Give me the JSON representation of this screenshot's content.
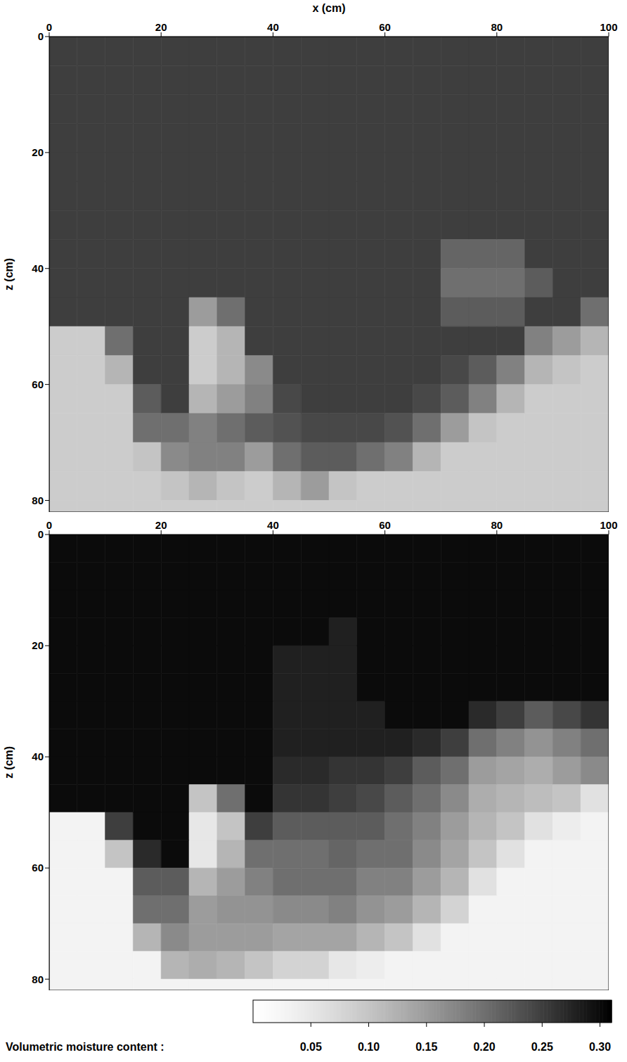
{
  "chart_data": [
    {
      "type": "heatmap",
      "xlabel": "x (cm)",
      "ylabel": "z (cm)",
      "xlim": [
        0,
        100
      ],
      "ylim": [
        0,
        82
      ],
      "xticks": [
        0,
        20,
        40,
        60,
        80,
        100
      ],
      "yticks": [
        0,
        20,
        40,
        60,
        80
      ],
      "x_edges": [
        0,
        5,
        10,
        15,
        20,
        25,
        30,
        35,
        40,
        45,
        50,
        55,
        60,
        65,
        70,
        75,
        80,
        85,
        90,
        95,
        100
      ],
      "y_edges": [
        0,
        5,
        10,
        15,
        20,
        25,
        30,
        35,
        40,
        45,
        50,
        55,
        60,
        65,
        70,
        75,
        80,
        82
      ],
      "cells": [
        [
          0.25,
          0.25,
          0.25,
          0.25,
          0.25,
          0.25,
          0.25,
          0.25,
          0.25,
          0.25,
          0.25,
          0.25,
          0.25,
          0.25,
          0.25,
          0.25,
          0.25,
          0.25,
          0.25,
          0.25
        ],
        [
          0.25,
          0.25,
          0.25,
          0.25,
          0.25,
          0.25,
          0.25,
          0.25,
          0.25,
          0.25,
          0.25,
          0.25,
          0.25,
          0.25,
          0.25,
          0.25,
          0.25,
          0.25,
          0.25,
          0.25
        ],
        [
          0.25,
          0.25,
          0.25,
          0.25,
          0.25,
          0.25,
          0.25,
          0.25,
          0.25,
          0.25,
          0.25,
          0.25,
          0.25,
          0.25,
          0.25,
          0.25,
          0.25,
          0.25,
          0.25,
          0.25
        ],
        [
          0.25,
          0.25,
          0.25,
          0.25,
          0.25,
          0.25,
          0.25,
          0.25,
          0.25,
          0.25,
          0.25,
          0.25,
          0.25,
          0.25,
          0.25,
          0.25,
          0.25,
          0.25,
          0.25,
          0.25
        ],
        [
          0.25,
          0.25,
          0.25,
          0.25,
          0.25,
          0.25,
          0.25,
          0.25,
          0.25,
          0.25,
          0.25,
          0.25,
          0.25,
          0.25,
          0.25,
          0.25,
          0.25,
          0.25,
          0.25,
          0.25
        ],
        [
          0.25,
          0.25,
          0.25,
          0.25,
          0.25,
          0.25,
          0.25,
          0.25,
          0.25,
          0.25,
          0.25,
          0.25,
          0.25,
          0.25,
          0.25,
          0.25,
          0.25,
          0.25,
          0.25,
          0.25
        ],
        [
          0.25,
          0.25,
          0.25,
          0.25,
          0.25,
          0.25,
          0.25,
          0.25,
          0.25,
          0.25,
          0.25,
          0.25,
          0.25,
          0.25,
          0.25,
          0.25,
          0.25,
          0.25,
          0.25,
          0.25
        ],
        [
          0.25,
          0.25,
          0.25,
          0.25,
          0.25,
          0.25,
          0.25,
          0.25,
          0.25,
          0.25,
          0.25,
          0.25,
          0.25,
          0.25,
          0.21,
          0.21,
          0.21,
          0.25,
          0.25,
          0.25
        ],
        [
          0.25,
          0.25,
          0.25,
          0.25,
          0.25,
          0.25,
          0.25,
          0.25,
          0.25,
          0.25,
          0.25,
          0.25,
          0.25,
          0.25,
          0.2,
          0.2,
          0.2,
          0.22,
          0.25,
          0.25
        ],
        [
          0.25,
          0.25,
          0.25,
          0.25,
          0.25,
          0.15,
          0.2,
          0.25,
          0.25,
          0.25,
          0.25,
          0.25,
          0.25,
          0.25,
          0.22,
          0.22,
          0.22,
          0.25,
          0.25,
          0.2
        ],
        [
          0.09,
          0.09,
          0.2,
          0.25,
          0.25,
          0.09,
          0.12,
          0.25,
          0.25,
          0.25,
          0.25,
          0.25,
          0.25,
          0.25,
          0.25,
          0.25,
          0.25,
          0.18,
          0.15,
          0.12
        ],
        [
          0.09,
          0.09,
          0.12,
          0.25,
          0.25,
          0.09,
          0.12,
          0.17,
          0.25,
          0.25,
          0.25,
          0.25,
          0.25,
          0.25,
          0.24,
          0.22,
          0.18,
          0.12,
          0.1,
          0.09
        ],
        [
          0.09,
          0.09,
          0.09,
          0.22,
          0.25,
          0.12,
          0.15,
          0.18,
          0.24,
          0.25,
          0.25,
          0.25,
          0.25,
          0.24,
          0.22,
          0.18,
          0.12,
          0.09,
          0.09,
          0.09
        ],
        [
          0.09,
          0.09,
          0.09,
          0.2,
          0.2,
          0.18,
          0.2,
          0.22,
          0.23,
          0.24,
          0.24,
          0.24,
          0.23,
          0.2,
          0.15,
          0.1,
          0.09,
          0.09,
          0.09,
          0.09
        ],
        [
          0.09,
          0.09,
          0.09,
          0.1,
          0.17,
          0.18,
          0.18,
          0.15,
          0.2,
          0.22,
          0.22,
          0.2,
          0.18,
          0.12,
          0.09,
          0.09,
          0.09,
          0.09,
          0.09,
          0.09
        ],
        [
          0.09,
          0.09,
          0.09,
          0.09,
          0.1,
          0.12,
          0.1,
          0.09,
          0.12,
          0.15,
          0.1,
          0.09,
          0.09,
          0.09,
          0.09,
          0.09,
          0.09,
          0.09,
          0.09,
          0.09
        ],
        [
          0.09,
          0.09,
          0.09,
          0.09,
          0.09,
          0.09,
          0.09,
          0.09,
          0.09,
          0.09,
          0.09,
          0.09,
          0.09,
          0.09,
          0.09,
          0.09,
          0.09,
          0.09,
          0.09,
          0.09
        ]
      ]
    },
    {
      "type": "heatmap",
      "ylabel": "z (cm)",
      "xlim": [
        0,
        100
      ],
      "ylim": [
        0,
        82
      ],
      "xticks": [
        0,
        20,
        40,
        60,
        80,
        100
      ],
      "yticks": [
        0,
        20,
        40,
        60,
        80
      ],
      "x_edges": [
        0,
        5,
        10,
        15,
        20,
        25,
        30,
        35,
        40,
        45,
        50,
        55,
        60,
        65,
        70,
        75,
        80,
        85,
        90,
        95,
        100
      ],
      "y_edges": [
        0,
        5,
        10,
        15,
        20,
        25,
        30,
        35,
        40,
        45,
        50,
        55,
        60,
        65,
        70,
        75,
        80,
        82
      ],
      "cells": [
        [
          0.3,
          0.3,
          0.3,
          0.3,
          0.3,
          0.3,
          0.3,
          0.3,
          0.3,
          0.3,
          0.3,
          0.3,
          0.3,
          0.3,
          0.3,
          0.3,
          0.3,
          0.3,
          0.3,
          0.3
        ],
        [
          0.3,
          0.3,
          0.3,
          0.3,
          0.3,
          0.3,
          0.3,
          0.3,
          0.3,
          0.3,
          0.3,
          0.3,
          0.3,
          0.3,
          0.3,
          0.3,
          0.3,
          0.3,
          0.3,
          0.3
        ],
        [
          0.3,
          0.3,
          0.3,
          0.3,
          0.3,
          0.3,
          0.3,
          0.3,
          0.3,
          0.3,
          0.3,
          0.3,
          0.3,
          0.3,
          0.3,
          0.3,
          0.3,
          0.3,
          0.3,
          0.3
        ],
        [
          0.3,
          0.3,
          0.3,
          0.3,
          0.3,
          0.3,
          0.3,
          0.3,
          0.3,
          0.3,
          0.28,
          0.3,
          0.3,
          0.3,
          0.3,
          0.3,
          0.3,
          0.3,
          0.3,
          0.3
        ],
        [
          0.3,
          0.3,
          0.3,
          0.3,
          0.3,
          0.3,
          0.3,
          0.3,
          0.28,
          0.28,
          0.28,
          0.3,
          0.3,
          0.3,
          0.3,
          0.3,
          0.3,
          0.3,
          0.3,
          0.3
        ],
        [
          0.3,
          0.3,
          0.3,
          0.3,
          0.3,
          0.3,
          0.3,
          0.3,
          0.28,
          0.28,
          0.28,
          0.3,
          0.3,
          0.3,
          0.3,
          0.3,
          0.3,
          0.3,
          0.3,
          0.3
        ],
        [
          0.3,
          0.3,
          0.3,
          0.3,
          0.3,
          0.3,
          0.3,
          0.3,
          0.28,
          0.28,
          0.28,
          0.28,
          0.3,
          0.3,
          0.3,
          0.27,
          0.25,
          0.22,
          0.24,
          0.26
        ],
        [
          0.3,
          0.3,
          0.3,
          0.3,
          0.3,
          0.3,
          0.3,
          0.3,
          0.28,
          0.28,
          0.28,
          0.28,
          0.28,
          0.27,
          0.25,
          0.2,
          0.18,
          0.16,
          0.18,
          0.2
        ],
        [
          0.3,
          0.3,
          0.3,
          0.3,
          0.3,
          0.3,
          0.3,
          0.3,
          0.27,
          0.27,
          0.26,
          0.26,
          0.25,
          0.22,
          0.2,
          0.15,
          0.14,
          0.13,
          0.15,
          0.17
        ],
        [
          0.3,
          0.3,
          0.3,
          0.3,
          0.3,
          0.1,
          0.2,
          0.3,
          0.26,
          0.26,
          0.25,
          0.24,
          0.22,
          0.2,
          0.17,
          0.13,
          0.12,
          0.11,
          0.1,
          0.06
        ],
        [
          0.03,
          0.03,
          0.25,
          0.3,
          0.3,
          0.05,
          0.1,
          0.25,
          0.22,
          0.22,
          0.22,
          0.22,
          0.2,
          0.18,
          0.15,
          0.12,
          0.1,
          0.06,
          0.04,
          0.03
        ],
        [
          0.03,
          0.03,
          0.1,
          0.27,
          0.3,
          0.05,
          0.12,
          0.2,
          0.2,
          0.2,
          0.21,
          0.2,
          0.2,
          0.17,
          0.14,
          0.1,
          0.06,
          0.03,
          0.03,
          0.03
        ],
        [
          0.03,
          0.03,
          0.03,
          0.22,
          0.22,
          0.12,
          0.15,
          0.18,
          0.2,
          0.2,
          0.2,
          0.18,
          0.18,
          0.15,
          0.12,
          0.06,
          0.03,
          0.03,
          0.03,
          0.03
        ],
        [
          0.03,
          0.03,
          0.03,
          0.2,
          0.2,
          0.15,
          0.16,
          0.16,
          0.17,
          0.17,
          0.18,
          0.16,
          0.15,
          0.12,
          0.08,
          0.03,
          0.03,
          0.03,
          0.03,
          0.03
        ],
        [
          0.03,
          0.03,
          0.03,
          0.12,
          0.17,
          0.15,
          0.15,
          0.15,
          0.14,
          0.14,
          0.14,
          0.12,
          0.1,
          0.06,
          0.03,
          0.03,
          0.03,
          0.03,
          0.03,
          0.03
        ],
        [
          0.03,
          0.03,
          0.03,
          0.03,
          0.12,
          0.13,
          0.12,
          0.1,
          0.08,
          0.08,
          0.05,
          0.04,
          0.03,
          0.03,
          0.03,
          0.03,
          0.03,
          0.03,
          0.03,
          0.03
        ],
        [
          0.03,
          0.03,
          0.03,
          0.03,
          0.03,
          0.03,
          0.03,
          0.03,
          0.03,
          0.03,
          0.03,
          0.03,
          0.03,
          0.03,
          0.03,
          0.03,
          0.03,
          0.03,
          0.03,
          0.03
        ]
      ]
    }
  ],
  "colorbar": {
    "label": "Volumetric moisture content :",
    "range": [
      0,
      0.31
    ],
    "ticks": [
      0.05,
      {
        "value": 0.1,
        "label": "0.10"
      },
      0.15,
      {
        "value": 0.2,
        "label": "0.20"
      },
      0.25,
      {
        "value": 0.3,
        "label": "0.30"
      }
    ]
  }
}
